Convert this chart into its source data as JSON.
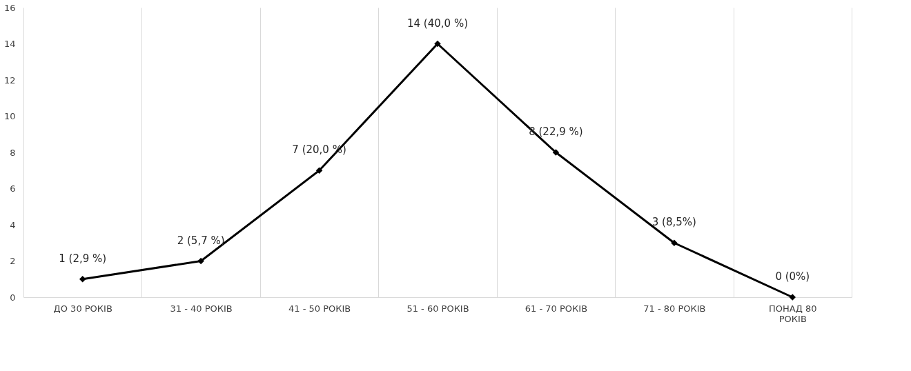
{
  "chart_data": {
    "type": "line",
    "categories": [
      "ДО 30 РОКІВ",
      "31 - 40 РОКІВ",
      "41 - 50 РОКІВ",
      "51 - 60 РОКІВ",
      "61 - 70 РОКІВ",
      "71 - 80 РОКІВ",
      "ПОНАД 80 РОКІВ"
    ],
    "series": [
      {
        "color": "#000000",
        "values": [
          1,
          2,
          7,
          14,
          8,
          3,
          0
        ],
        "value_labels": [
          "1 (2,9 %)",
          "2 (5,7 %)",
          "7 (20,0 %)",
          "14 (40,0 %)",
          "8 (22,9 %)",
          "3 (8,5%)",
          "0 (0%)"
        ]
      }
    ],
    "ylim": [
      0,
      16
    ],
    "yticks": [
      0,
      2,
      4,
      6,
      8,
      10,
      12,
      14,
      16
    ],
    "grid": "x",
    "marker": "diamond",
    "line_style": "solid"
  }
}
